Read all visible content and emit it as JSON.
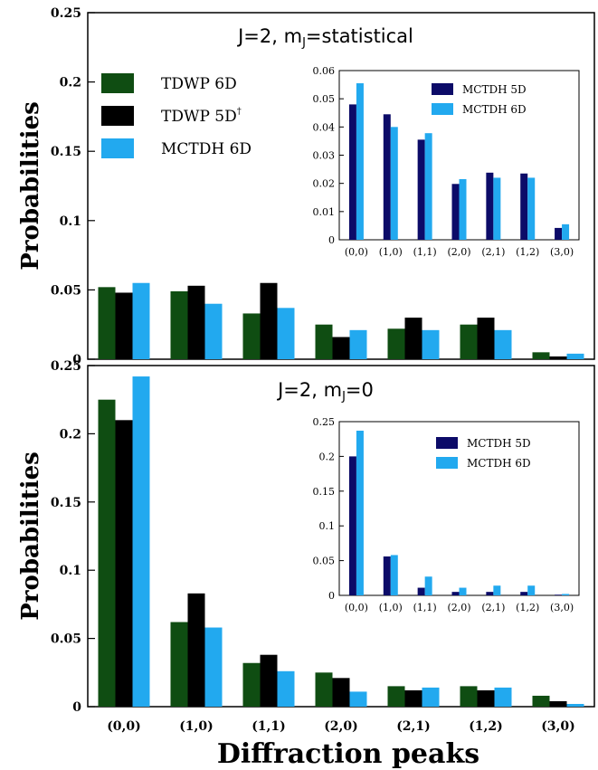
{
  "xlabel": "Diffraction peaks",
  "chart_data": [
    {
      "type": "bar",
      "title": "J=2, mJ=statistical",
      "ylabel": "Probabilities",
      "xlabel": "",
      "ylim": [
        0,
        0.25
      ],
      "yticks": [
        "0",
        "0.05",
        "0.1",
        "0.15",
        "0.2",
        "0.25"
      ],
      "categories": [
        "(0,0)",
        "(1,0)",
        "(1,1)",
        "(2,0)",
        "(2,1)",
        "(1,2)",
        "(3,0)"
      ],
      "show_category_labels": false,
      "legend": "top-left",
      "series": [
        {
          "name": "TDWP 6D",
          "color": "#0f4d12",
          "values": [
            0.052,
            0.049,
            0.033,
            0.025,
            0.022,
            0.025,
            0.005
          ]
        },
        {
          "name": "TDWP 5D†",
          "color": "#000000",
          "values": [
            0.048,
            0.053,
            0.055,
            0.016,
            0.03,
            0.03,
            0.002
          ]
        },
        {
          "name": "MCTDH 6D",
          "color": "#22a9ef",
          "values": [
            0.055,
            0.04,
            0.037,
            0.021,
            0.021,
            0.021,
            0.004
          ]
        }
      ],
      "inset": {
        "type": "bar",
        "ylim": [
          0,
          0.06
        ],
        "yticks": [
          "0",
          "0.01",
          "0.02",
          "0.03",
          "0.04",
          "0.05",
          "0.06"
        ],
        "categories": [
          "(0,0)",
          "(1,0)",
          "(1,1)",
          "(2,0)",
          "(2,1)",
          "(1,2)",
          "(3,0)"
        ],
        "legend": "top-right",
        "series": [
          {
            "name": "MCTDH 5D",
            "color": "#0c0b68",
            "values": [
              0.048,
              0.0445,
              0.0355,
              0.0198,
              0.0238,
              0.0235,
              0.0042
            ]
          },
          {
            "name": "MCTDH 6D",
            "color": "#22a9ef",
            "values": [
              0.0555,
              0.04,
              0.0378,
              0.0215,
              0.022,
              0.022,
              0.0055
            ]
          }
        ]
      }
    },
    {
      "type": "bar",
      "title": "J=2, mJ=0",
      "ylabel": "Probabilities",
      "xlabel": "Diffraction peaks",
      "ylim": [
        0,
        0.25
      ],
      "yticks": [
        "0",
        "0.05",
        "0.1",
        "0.15",
        "0.2",
        "0.25"
      ],
      "categories": [
        "(0,0)",
        "(1,0)",
        "(1,1)",
        "(2,0)",
        "(2,1)",
        "(1,2)",
        "(3,0)"
      ],
      "show_category_labels": true,
      "series": [
        {
          "name": "TDWP 6D",
          "color": "#0f4d12",
          "values": [
            0.225,
            0.062,
            0.032,
            0.025,
            0.015,
            0.015,
            0.008
          ]
        },
        {
          "name": "TDWP 5D†",
          "color": "#000000",
          "values": [
            0.21,
            0.083,
            0.038,
            0.021,
            0.012,
            0.012,
            0.004
          ]
        },
        {
          "name": "MCTDH 6D",
          "color": "#22a9ef",
          "values": [
            0.242,
            0.058,
            0.026,
            0.011,
            0.014,
            0.014,
            0.002
          ]
        }
      ],
      "inset": {
        "type": "bar",
        "ylim": [
          0,
          0.25
        ],
        "yticks": [
          "0",
          "0.05",
          "0.1",
          "0.15",
          "0.2",
          "0.25"
        ],
        "categories": [
          "(0,0)",
          "(1,0)",
          "(1,1)",
          "(2,0)",
          "(2,1)",
          "(1,2)",
          "(3,0)"
        ],
        "legend": "top-right",
        "series": [
          {
            "name": "MCTDH 5D",
            "color": "#0c0b68",
            "values": [
              0.2,
              0.056,
              0.011,
              0.005,
              0.005,
              0.005,
              0.001
            ]
          },
          {
            "name": "MCTDH 6D",
            "color": "#22a9ef",
            "values": [
              0.237,
              0.058,
              0.027,
              0.011,
              0.014,
              0.014,
              0.002
            ]
          }
        ]
      }
    }
  ]
}
